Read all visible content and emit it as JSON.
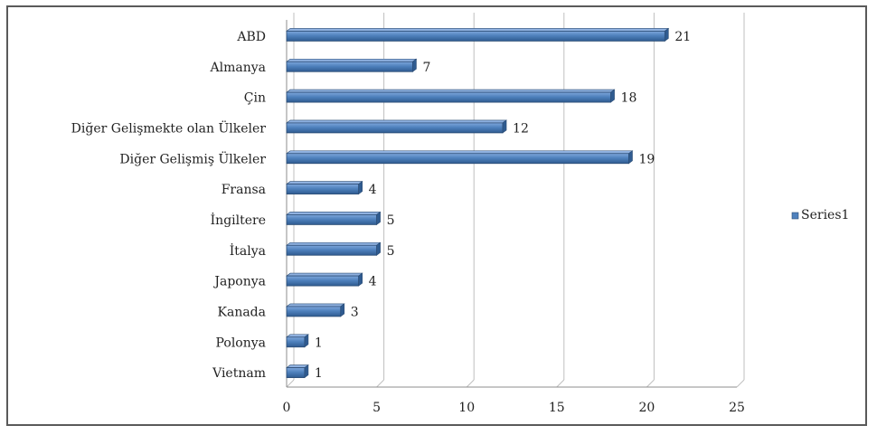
{
  "chart_data": {
    "type": "bar",
    "orientation": "horizontal",
    "categories": [
      "ABD",
      "Almanya",
      "Çin",
      "Diğer Gelişmekte olan Ülkeler",
      "Diğer Gelişmiş Ülkeler",
      "Fransa",
      "İngiltere",
      "İtalya",
      "Japonya",
      "Kanada",
      "Polonya",
      "Vietnam"
    ],
    "series": [
      {
        "name": "Series1",
        "values": [
          21,
          7,
          18,
          12,
          19,
          4,
          5,
          5,
          4,
          3,
          1,
          1
        ]
      }
    ],
    "xlim": [
      0,
      25
    ],
    "xticks": [
      0,
      5,
      10,
      15,
      20,
      25
    ],
    "grid": true,
    "legend_position": "right",
    "data_labels": true,
    "colors": {
      "bar": "#4f81bd",
      "bar_edge": "#2c4d75",
      "grid": "#bfbfbf"
    }
  }
}
